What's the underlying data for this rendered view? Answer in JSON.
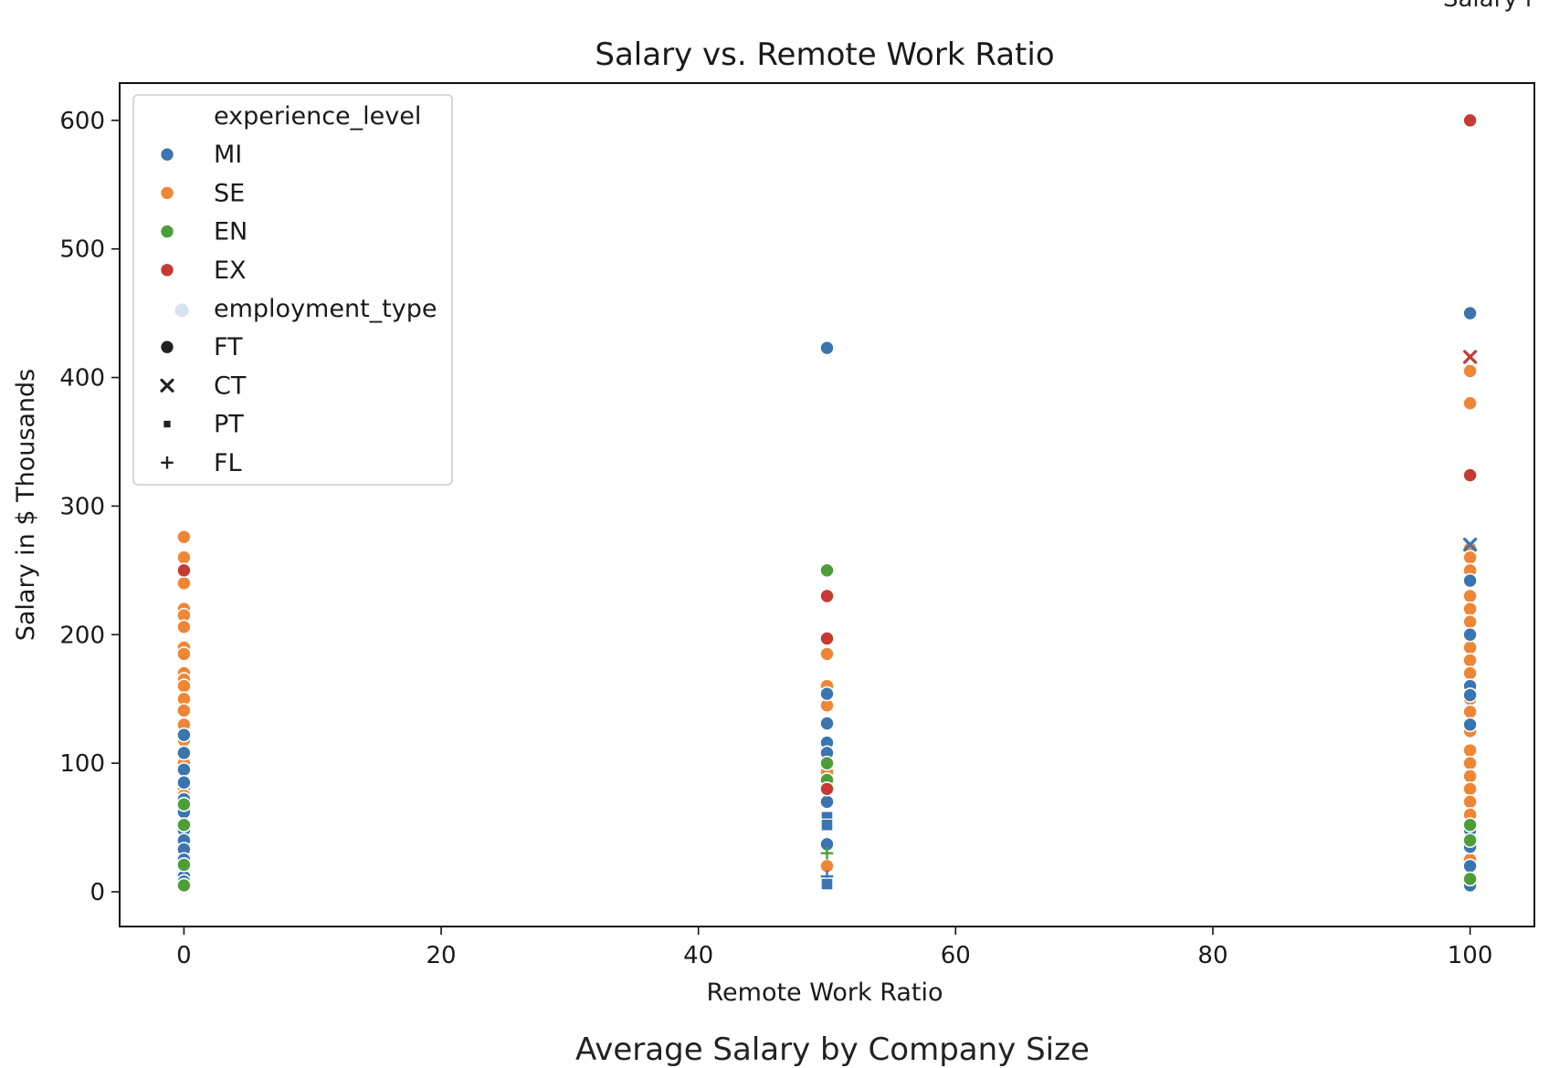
{
  "fragments": {
    "top_right": "Salary i",
    "bottom": "Average Salary by Company Size"
  },
  "chart_data": {
    "type": "scatter",
    "title": "Salary vs. Remote Work Ratio",
    "xlabel": "Remote Work Ratio",
    "ylabel": "Salary in $ Thousands",
    "xlim": [
      -5,
      105
    ],
    "ylim": [
      -27,
      629
    ],
    "xticks": [
      0,
      20,
      40,
      60,
      80,
      100
    ],
    "yticks": [
      0,
      100,
      200,
      300,
      400,
      500,
      600
    ],
    "grid": false,
    "legend_position": "top-left",
    "legend": {
      "hue_title": "experience_level",
      "hue": [
        {
          "label": "MI",
          "color": "#3a75b0"
        },
        {
          "label": "SE",
          "color": "#ef8636"
        },
        {
          "label": "EN",
          "color": "#4d9e3a"
        },
        {
          "label": "EX",
          "color": "#c53a32"
        }
      ],
      "style_title": "employment_type",
      "style": [
        {
          "label": "FT",
          "marker": "circle"
        },
        {
          "label": "CT",
          "marker": "x"
        },
        {
          "label": "PT",
          "marker": "square"
        },
        {
          "label": "FL",
          "marker": "plus"
        }
      ]
    },
    "series": [
      {
        "name": "MI",
        "color": "#3a75b0",
        "points": [
          {
            "x": 0,
            "y": 122,
            "m": "circle"
          },
          {
            "x": 0,
            "y": 108,
            "m": "circle"
          },
          {
            "x": 0,
            "y": 95,
            "m": "circle"
          },
          {
            "x": 0,
            "y": 85,
            "m": "circle"
          },
          {
            "x": 0,
            "y": 72,
            "m": "circle"
          },
          {
            "x": 0,
            "y": 62,
            "m": "circle"
          },
          {
            "x": 0,
            "y": 48,
            "m": "circle"
          },
          {
            "x": 0,
            "y": 40,
            "m": "circle"
          },
          {
            "x": 0,
            "y": 33,
            "m": "circle"
          },
          {
            "x": 0,
            "y": 25,
            "m": "circle"
          },
          {
            "x": 0,
            "y": 12,
            "m": "circle"
          },
          {
            "x": 0,
            "y": 8,
            "m": "circle"
          },
          {
            "x": 50,
            "y": 423,
            "m": "circle"
          },
          {
            "x": 50,
            "y": 154,
            "m": "circle"
          },
          {
            "x": 50,
            "y": 131,
            "m": "circle"
          },
          {
            "x": 50,
            "y": 116,
            "m": "circle"
          },
          {
            "x": 50,
            "y": 108,
            "m": "circle"
          },
          {
            "x": 50,
            "y": 70,
            "m": "circle"
          },
          {
            "x": 50,
            "y": 58,
            "m": "square"
          },
          {
            "x": 50,
            "y": 52,
            "m": "square"
          },
          {
            "x": 50,
            "y": 37,
            "m": "circle"
          },
          {
            "x": 50,
            "y": 12,
            "m": "plus"
          },
          {
            "x": 50,
            "y": 6,
            "m": "square"
          },
          {
            "x": 100,
            "y": 450,
            "m": "circle"
          },
          {
            "x": 100,
            "y": 270,
            "m": "x"
          },
          {
            "x": 100,
            "y": 242,
            "m": "circle"
          },
          {
            "x": 100,
            "y": 200,
            "m": "circle"
          },
          {
            "x": 100,
            "y": 160,
            "m": "circle"
          },
          {
            "x": 100,
            "y": 153,
            "m": "circle"
          },
          {
            "x": 100,
            "y": 130,
            "m": "circle"
          },
          {
            "x": 100,
            "y": 48,
            "m": "circle"
          },
          {
            "x": 100,
            "y": 35,
            "m": "circle"
          },
          {
            "x": 100,
            "y": 20,
            "m": "circle"
          },
          {
            "x": 100,
            "y": 5,
            "m": "circle"
          }
        ]
      },
      {
        "name": "SE",
        "color": "#ef8636",
        "points": [
          {
            "x": 0,
            "y": 276,
            "m": "circle"
          },
          {
            "x": 0,
            "y": 260,
            "m": "circle"
          },
          {
            "x": 0,
            "y": 240,
            "m": "circle"
          },
          {
            "x": 0,
            "y": 220,
            "m": "circle"
          },
          {
            "x": 0,
            "y": 215,
            "m": "circle"
          },
          {
            "x": 0,
            "y": 206,
            "m": "circle"
          },
          {
            "x": 0,
            "y": 190,
            "m": "circle"
          },
          {
            "x": 0,
            "y": 185,
            "m": "circle"
          },
          {
            "x": 0,
            "y": 170,
            "m": "circle"
          },
          {
            "x": 0,
            "y": 165,
            "m": "circle"
          },
          {
            "x": 0,
            "y": 160,
            "m": "circle"
          },
          {
            "x": 0,
            "y": 150,
            "m": "circle"
          },
          {
            "x": 0,
            "y": 141,
            "m": "circle"
          },
          {
            "x": 0,
            "y": 130,
            "m": "circle"
          },
          {
            "x": 0,
            "y": 118,
            "m": "circle"
          },
          {
            "x": 0,
            "y": 100,
            "m": "circle"
          },
          {
            "x": 0,
            "y": 80,
            "m": "circle"
          },
          {
            "x": 0,
            "y": 75,
            "m": "circle"
          },
          {
            "x": 50,
            "y": 185,
            "m": "circle"
          },
          {
            "x": 50,
            "y": 160,
            "m": "circle"
          },
          {
            "x": 50,
            "y": 145,
            "m": "circle"
          },
          {
            "x": 50,
            "y": 93,
            "m": "circle"
          },
          {
            "x": 50,
            "y": 20,
            "m": "circle"
          },
          {
            "x": 100,
            "y": 405,
            "m": "circle"
          },
          {
            "x": 100,
            "y": 380,
            "m": "circle"
          },
          {
            "x": 100,
            "y": 267,
            "m": "circle"
          },
          {
            "x": 100,
            "y": 260,
            "m": "circle"
          },
          {
            "x": 100,
            "y": 250,
            "m": "circle"
          },
          {
            "x": 100,
            "y": 230,
            "m": "circle"
          },
          {
            "x": 100,
            "y": 220,
            "m": "circle"
          },
          {
            "x": 100,
            "y": 210,
            "m": "circle"
          },
          {
            "x": 100,
            "y": 190,
            "m": "circle"
          },
          {
            "x": 100,
            "y": 180,
            "m": "circle"
          },
          {
            "x": 100,
            "y": 170,
            "m": "circle"
          },
          {
            "x": 100,
            "y": 150,
            "m": "circle"
          },
          {
            "x": 100,
            "y": 140,
            "m": "circle"
          },
          {
            "x": 100,
            "y": 125,
            "m": "circle"
          },
          {
            "x": 100,
            "y": 110,
            "m": "circle"
          },
          {
            "x": 100,
            "y": 100,
            "m": "circle"
          },
          {
            "x": 100,
            "y": 90,
            "m": "circle"
          },
          {
            "x": 100,
            "y": 80,
            "m": "circle"
          },
          {
            "x": 100,
            "y": 70,
            "m": "circle"
          },
          {
            "x": 100,
            "y": 60,
            "m": "circle"
          },
          {
            "x": 100,
            "y": 25,
            "m": "circle"
          }
        ]
      },
      {
        "name": "EN",
        "color": "#4d9e3a",
        "points": [
          {
            "x": 0,
            "y": 68,
            "m": "circle"
          },
          {
            "x": 0,
            "y": 52,
            "m": "circle"
          },
          {
            "x": 0,
            "y": 21,
            "m": "circle"
          },
          {
            "x": 0,
            "y": 5,
            "m": "circle"
          },
          {
            "x": 50,
            "y": 250,
            "m": "circle"
          },
          {
            "x": 50,
            "y": 100,
            "m": "circle"
          },
          {
            "x": 50,
            "y": 87,
            "m": "circle"
          },
          {
            "x": 50,
            "y": 30,
            "m": "plus"
          },
          {
            "x": 100,
            "y": 52,
            "m": "circle"
          },
          {
            "x": 100,
            "y": 40,
            "m": "circle"
          },
          {
            "x": 100,
            "y": 10,
            "m": "circle"
          }
        ]
      },
      {
        "name": "EX",
        "color": "#c53a32",
        "points": [
          {
            "x": 0,
            "y": 250,
            "m": "circle"
          },
          {
            "x": 50,
            "y": 230,
            "m": "circle"
          },
          {
            "x": 50,
            "y": 197,
            "m": "circle"
          },
          {
            "x": 50,
            "y": 80,
            "m": "circle"
          },
          {
            "x": 100,
            "y": 600,
            "m": "circle"
          },
          {
            "x": 100,
            "y": 416,
            "m": "x"
          },
          {
            "x": 100,
            "y": 324,
            "m": "circle"
          }
        ]
      }
    ]
  }
}
